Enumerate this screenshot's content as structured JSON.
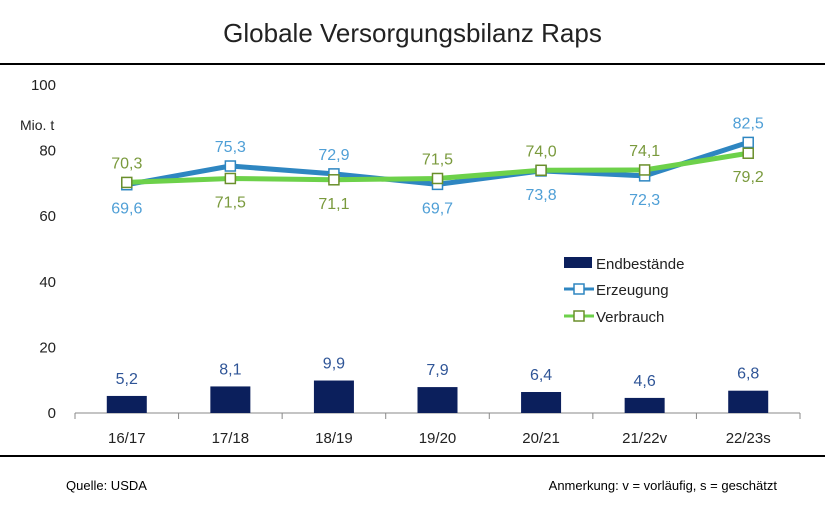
{
  "title": "Globale Versorgungsbilanz Raps",
  "source": "Quelle: USDA",
  "note": "Anmerkung: v = vorläufig, s = geschätzt",
  "colors": {
    "bar": "#0b1f5c",
    "erzeugung": "#2e86c1",
    "verbrauch": "#6dd14a",
    "erzeugung_label": "#4f9fd6",
    "verbrauch_label": "#7a9a3d"
  },
  "chart_data": {
    "type": "bar+line",
    "unit_label": "Mio. t",
    "categories": [
      "16/17",
      "17/18",
      "18/19",
      "19/20",
      "20/21",
      "21/22v",
      "22/23s"
    ],
    "ylim": [
      0,
      100
    ],
    "yticks": [
      0,
      20,
      40,
      60,
      80,
      100
    ],
    "grid": false,
    "legend_position": "right-middle",
    "series": [
      {
        "name": "Endbestände",
        "kind": "bar",
        "values": [
          5.2,
          8.1,
          9.9,
          7.9,
          6.4,
          4.6,
          6.8
        ],
        "labels": [
          "5,2",
          "8,1",
          "9,9",
          "7,9",
          "6,4",
          "4,6",
          "6,8"
        ]
      },
      {
        "name": "Erzeugung",
        "kind": "line",
        "values": [
          69.6,
          75.3,
          72.9,
          69.7,
          73.8,
          72.3,
          82.5
        ],
        "labels": [
          "69,6",
          "75,3",
          "72,9",
          "69,7",
          "73,8",
          "72,3",
          "82,5"
        ]
      },
      {
        "name": "Verbrauch",
        "kind": "line",
        "values": [
          70.3,
          71.5,
          71.1,
          71.5,
          74.0,
          74.1,
          79.2
        ],
        "labels": [
          "70,3",
          "71,5",
          "71,1",
          "71,5",
          "74,0",
          "74,1",
          "79,2"
        ]
      }
    ]
  }
}
